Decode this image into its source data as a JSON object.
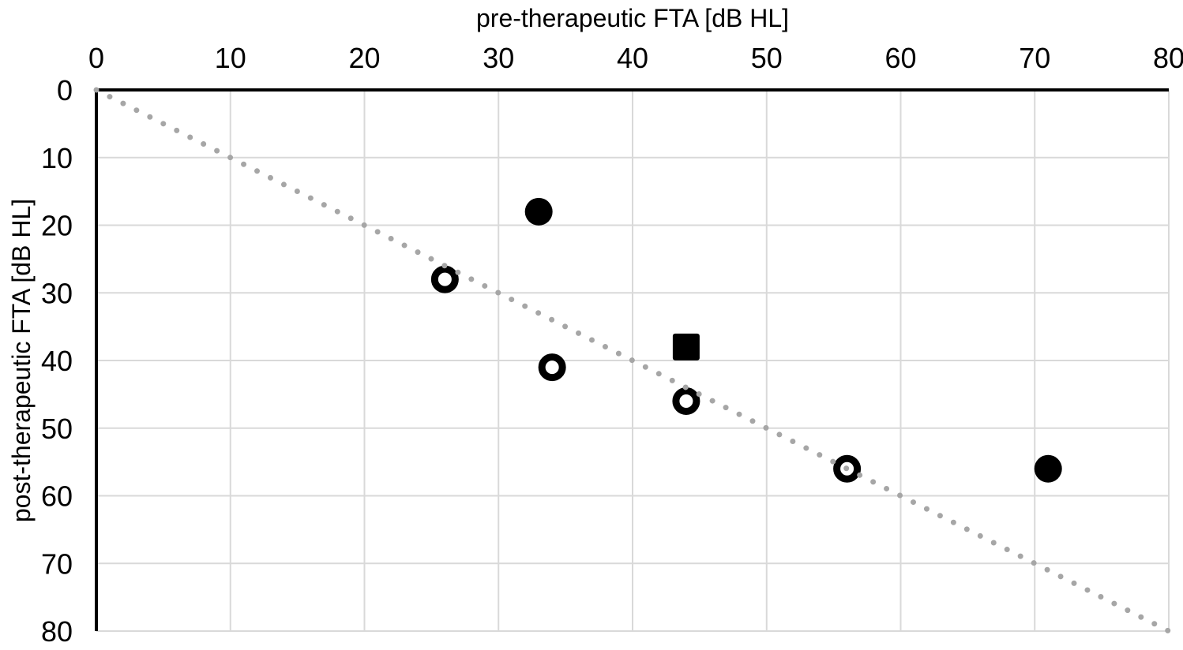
{
  "chart_data": {
    "type": "scatter",
    "title": "",
    "xlabel": "pre-therapeutic FTA [dB HL]",
    "ylabel": "post-therapeutic FTA [dB HL]",
    "xlim": [
      0,
      80
    ],
    "ylim": [
      0,
      80
    ],
    "x_axis_position": "top",
    "y_axis_reversed": true,
    "x_ticks": [
      0,
      10,
      20,
      30,
      40,
      50,
      60,
      70,
      80
    ],
    "y_ticks": [
      0,
      10,
      20,
      30,
      40,
      50,
      60,
      70,
      80
    ],
    "grid": true,
    "legend": "none",
    "series": [
      {
        "name": "filled-circle-points",
        "marker": "circle-filled",
        "points": [
          {
            "x": 33,
            "y": 18
          },
          {
            "x": 71,
            "y": 56
          }
        ]
      },
      {
        "name": "open-circle-points",
        "marker": "circle-open",
        "points": [
          {
            "x": 26,
            "y": 28
          },
          {
            "x": 34,
            "y": 41
          },
          {
            "x": 44,
            "y": 46
          },
          {
            "x": 56,
            "y": 56
          }
        ]
      },
      {
        "name": "filled-square-points",
        "marker": "square-filled",
        "points": [
          {
            "x": 44,
            "y": 38
          }
        ]
      }
    ],
    "reference_line": {
      "name": "identity-line",
      "style": "dotted",
      "from": {
        "x": 0,
        "y": 0
      },
      "to": {
        "x": 80,
        "y": 80
      },
      "color": "#a6a6a6"
    },
    "colors": {
      "marker": "#000000",
      "axis": "#000000",
      "gridline": "#d9d9d9",
      "background": "#ffffff",
      "tick_label": "#000000"
    }
  }
}
